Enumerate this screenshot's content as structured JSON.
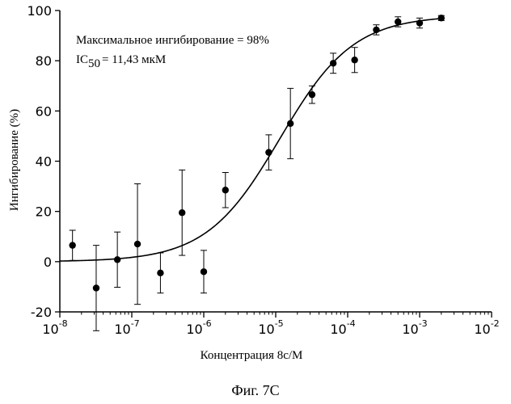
{
  "chart_data": {
    "type": "scatter",
    "title": "",
    "xlabel": "Концентрация 8с/М",
    "ylabel": "Ингибирование (%)",
    "caption": "Фиг. 7С",
    "annotation_line1": "Максимальное ингибирование = 98%",
    "annotation_ic_prefix": "IC",
    "annotation_ic_sub": "50",
    "annotation_ic_rest": "= 11,43 мкМ",
    "x_scale": "log",
    "xlim": [
      1e-08,
      0.01
    ],
    "ylim": [
      -20,
      100
    ],
    "x_tick_base": "10",
    "x_ticks": [
      {
        "exp": "-8"
      },
      {
        "exp": "-7"
      },
      {
        "exp": "-6"
      },
      {
        "exp": "-5"
      },
      {
        "exp": "-4"
      },
      {
        "exp": "-3"
      },
      {
        "exp": "-2"
      }
    ],
    "y_ticks": [
      "-20",
      "0",
      "20",
      "40",
      "60",
      "80",
      "100"
    ],
    "grid": false,
    "points": [
      {
        "x": 1.5e-08,
        "y": 6.5,
        "err": 6
      },
      {
        "x": 3.2e-08,
        "y": -10.5,
        "err": 17
      },
      {
        "x": 6.3e-08,
        "y": 0.8,
        "err": 11
      },
      {
        "x": 1.2e-07,
        "y": 7,
        "err": 24
      },
      {
        "x": 2.5e-07,
        "y": -4.5,
        "err": 8
      },
      {
        "x": 5e-07,
        "y": 19.5,
        "err": 17
      },
      {
        "x": 1e-06,
        "y": -4,
        "err": 8.5
      },
      {
        "x": 2e-06,
        "y": 28.5,
        "err": 7
      },
      {
        "x": 8e-06,
        "y": 43.5,
        "err": 7
      },
      {
        "x": 1.6e-05,
        "y": 55,
        "err": 14
      },
      {
        "x": 3.2e-05,
        "y": 66.5,
        "err": 3.5
      },
      {
        "x": 6.3e-05,
        "y": 79,
        "err": 4
      },
      {
        "x": 0.000125,
        "y": 80.3,
        "err": 5
      },
      {
        "x": 0.00025,
        "y": 92.3,
        "err": 2
      },
      {
        "x": 0.0005,
        "y": 95.5,
        "err": 2
      },
      {
        "x": 0.001,
        "y": 95,
        "err": 2
      },
      {
        "x": 0.002,
        "y": 97,
        "err": 1
      }
    ],
    "fit": {
      "type": "sigmoid",
      "bottom": 0,
      "top": 98,
      "ic50": 1.143e-05,
      "hill": 0.85
    }
  }
}
